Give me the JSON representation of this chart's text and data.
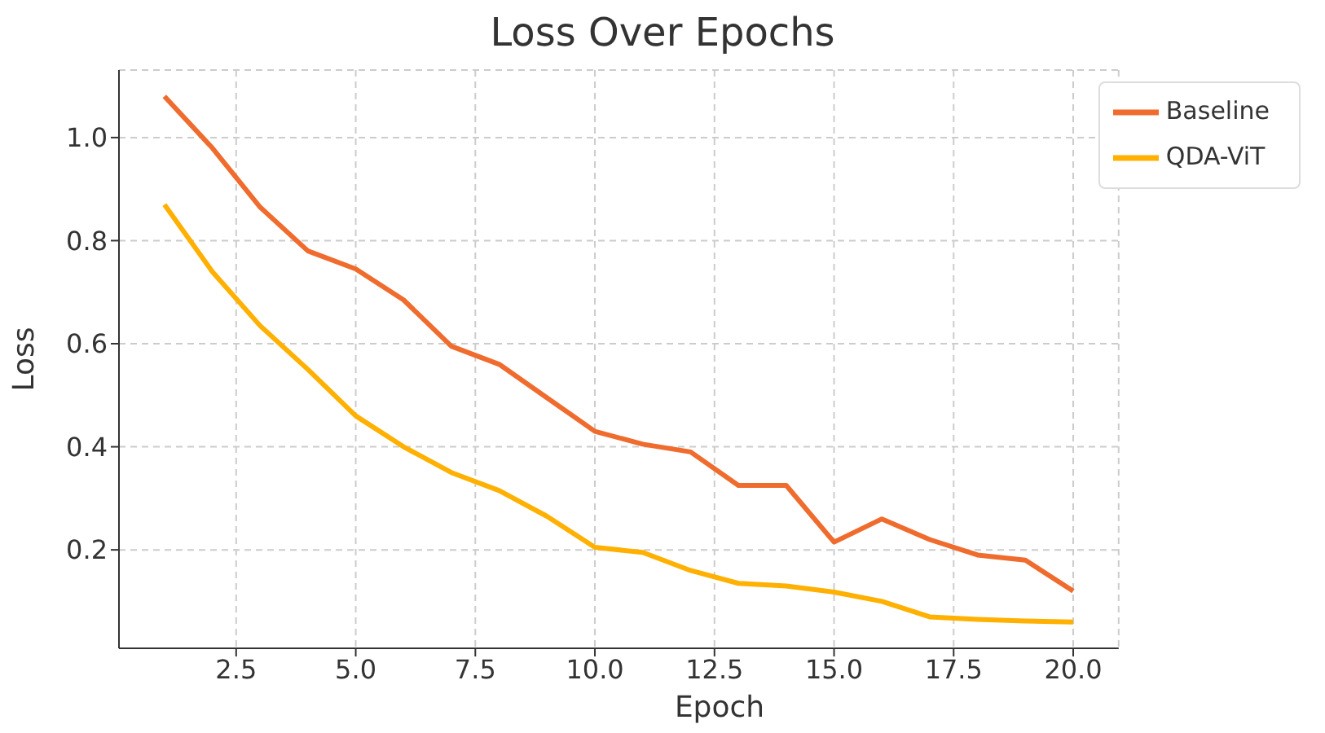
{
  "chart_data": {
    "type": "line",
    "title": "Loss Over Epochs",
    "xlabel": "Epoch",
    "ylabel": "Loss",
    "x": [
      1,
      2,
      3,
      4,
      5,
      6,
      7,
      8,
      9,
      10,
      11,
      12,
      13,
      14,
      15,
      16,
      17,
      18,
      19,
      20
    ],
    "series": [
      {
        "name": "QDA-ViT",
        "color": "#ffb000",
        "values": [
          0.87,
          0.74,
          0.635,
          0.55,
          0.46,
          0.4,
          0.35,
          0.315,
          0.265,
          0.205,
          0.195,
          0.16,
          0.135,
          0.13,
          0.118,
          0.1,
          0.07,
          0.065,
          0.062,
          0.06
        ]
      },
      {
        "name": "Baseline",
        "color": "#ef6c2e",
        "values": [
          1.08,
          0.98,
          0.865,
          0.78,
          0.745,
          0.685,
          0.595,
          0.56,
          0.495,
          0.43,
          0.405,
          0.39,
          0.325,
          0.325,
          0.215,
          0.26,
          0.22,
          0.19,
          0.18,
          0.12
        ]
      }
    ],
    "xlim": [
      0.05,
      20.95
    ],
    "xticks": [
      2.5,
      {
        "value": 5,
        "label": "5.0"
      },
      7.5,
      {
        "value": 10,
        "label": "10.0"
      },
      12.5,
      {
        "value": 15,
        "label": "15.0"
      },
      17.5,
      {
        "value": 20,
        "label": "20.0"
      }
    ],
    "ylim": [
      0.009,
      1.131
    ],
    "yticks": [
      0.2,
      0.4,
      0.6,
      0.8,
      {
        "value": 1,
        "label": "1.0"
      }
    ],
    "grid": true,
    "legend": "top right",
    "marker": "none",
    "line_style": "solid"
  }
}
